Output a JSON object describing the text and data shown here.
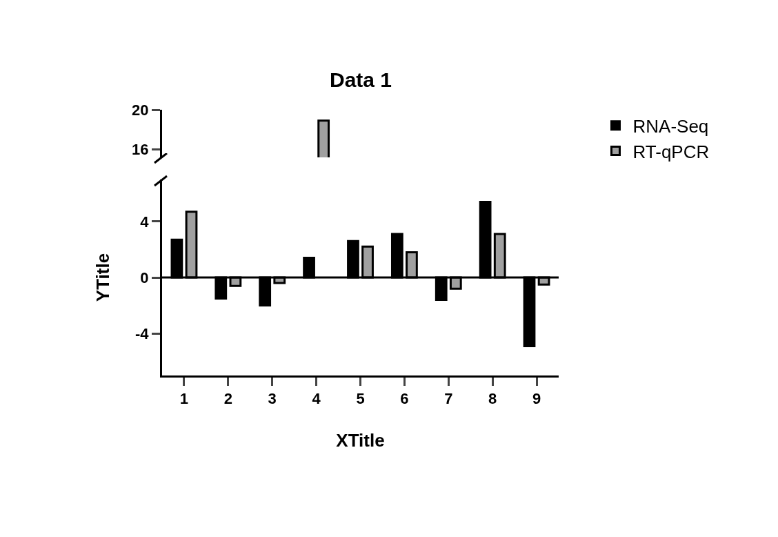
{
  "chart_data": [
    {
      "type": "bar",
      "title": "Data 1",
      "categories": [
        "1",
        "2",
        "3",
        "4",
        "5",
        "6",
        "7",
        "8",
        "9"
      ],
      "series": [
        {
          "name": "RNA-Seq",
          "color": "#000000",
          "values": [
            null,
            null,
            null,
            null,
            null,
            null,
            null,
            null,
            null
          ]
        },
        {
          "name": "RT-qPCR",
          "color": "#a0a0a0",
          "values": [
            null,
            null,
            null,
            18.9,
            null,
            null,
            null,
            null,
            null
          ]
        }
      ],
      "ylim": [
        15.2,
        20
      ],
      "yticks": [
        16,
        20
      ],
      "grid": false,
      "legend": "right",
      "tick_labels": "y"
    },
    {
      "type": "bar",
      "xlabel": "XTitle",
      "ylabel": "YTitle",
      "categories": [
        "1",
        "2",
        "3",
        "4",
        "5",
        "6",
        "7",
        "8",
        "9"
      ],
      "series": [
        {
          "color": "#000000",
          "values": [
            2.7,
            -1.5,
            -2.0,
            1.4,
            2.6,
            3.1,
            -1.6,
            5.4,
            -4.9
          ]
        },
        {
          "color": "#a0a0a0",
          "values": [
            4.7,
            -0.6,
            -0.4,
            null,
            2.2,
            1.8,
            -0.8,
            3.1,
            -0.5
          ]
        }
      ],
      "ylim": [
        -7,
        7
      ],
      "yticks": [
        -4,
        0,
        4
      ],
      "grid": false,
      "legend": false,
      "ref_lines": [
        {
          "axis": "y",
          "value": 0,
          "color": "#000000"
        }
      ]
    }
  ]
}
